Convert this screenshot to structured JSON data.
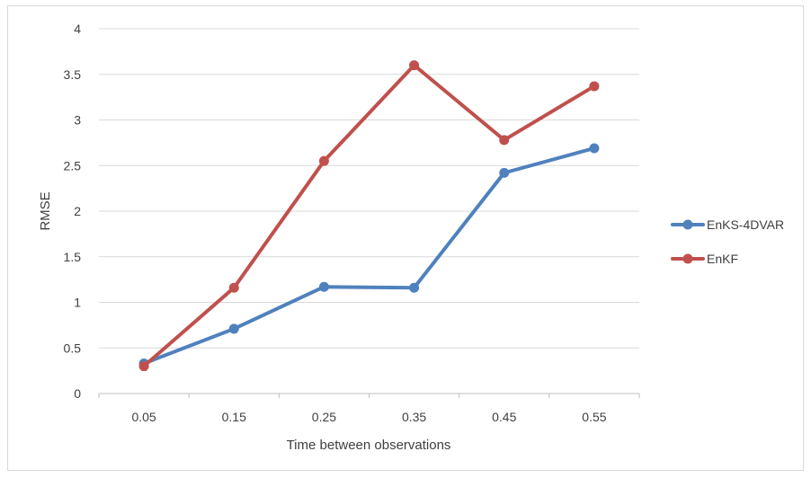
{
  "chart_data": {
    "type": "line",
    "title": "",
    "xlabel": "Time between observations",
    "ylabel": "RMSE",
    "categories": [
      "0.05",
      "0.15",
      "0.25",
      "0.35",
      "0.45",
      "0.55"
    ],
    "ylim": [
      0,
      4
    ],
    "yticks": [
      "0",
      "0.5",
      "1",
      "1.5",
      "2",
      "2.5",
      "3",
      "3.5",
      "4"
    ],
    "grid": true,
    "legend_position": "right",
    "series": [
      {
        "name": "EnKS-4DVAR",
        "color": "#4F81BD",
        "values": [
          0.33,
          0.71,
          1.17,
          1.16,
          2.42,
          2.69
        ]
      },
      {
        "name": "EnKF",
        "color": "#C0504D",
        "values": [
          0.3,
          1.16,
          2.55,
          3.6,
          2.78,
          3.37
        ]
      }
    ]
  }
}
